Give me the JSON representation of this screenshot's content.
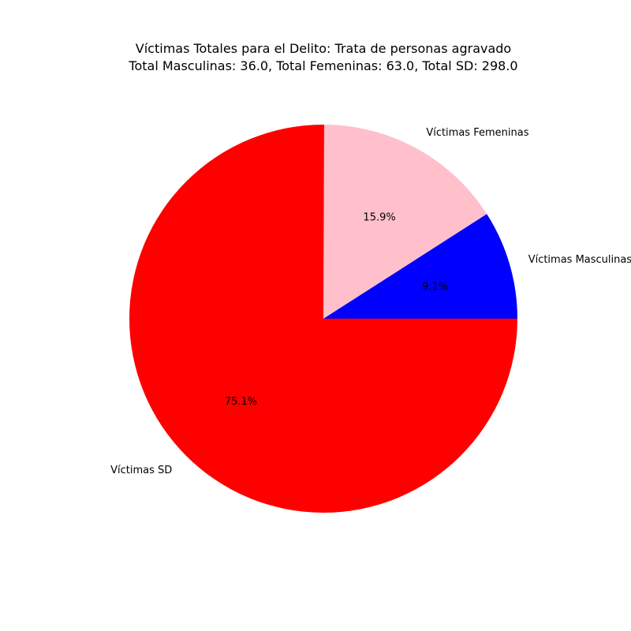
{
  "chart_data": {
    "type": "pie",
    "title_line1": "Víctimas Totales para el Delito: Trata de personas agravado",
    "title_line2": "Total Masculinas: 36.0, Total Femeninas: 63.0, Total SD: 298.0",
    "labels": [
      "Víctimas Masculinas",
      "Víctimas Femeninas",
      "Víctimas SD"
    ],
    "values": [
      36.0,
      63.0,
      298.0
    ],
    "percent_labels": [
      "9.1%",
      "15.9%",
      "75.1%"
    ],
    "colors": [
      "#0000ff",
      "#ffc0cb",
      "#ff0000"
    ],
    "start_angle": "0 degrees (east)",
    "direction": "counterclockwise"
  }
}
